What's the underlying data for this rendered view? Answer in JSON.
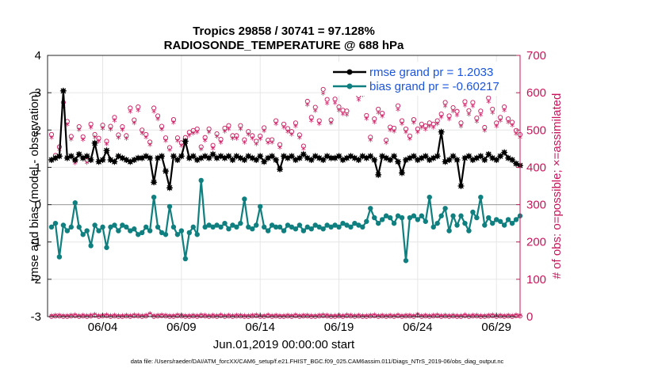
{
  "chart_data": {
    "type": "line",
    "title_line1": "Tropics 29858 / 30741 = 97.128%",
    "title_line2": "RADIOSONDE_TEMPERATURE @ 688 hPa",
    "xlabel": "Jun.01,2019 00:00:00 start",
    "ylabel_left": "rmse and bias (model - observation)",
    "ylabel_right": "# of obs: o=possible; ×=assimilated",
    "footnote": "data file: /Users/raeder/DAI/ATM_forcXX/CAM6_setup/f.e21.FHIST_BGC.f09_025.CAM6assim.011/Diags_NTrS_2019-06/obs_diag_output.nc",
    "xlim": [
      0.5,
      30.5
    ],
    "ylim_left": [
      -3,
      4
    ],
    "ylim_right": [
      0,
      700
    ],
    "x_ticks": [
      {
        "v": 4,
        "label": "06/04"
      },
      {
        "v": 9,
        "label": "06/09"
      },
      {
        "v": 14,
        "label": "06/14"
      },
      {
        "v": 19,
        "label": "06/19"
      },
      {
        "v": 24,
        "label": "06/24"
      },
      {
        "v": 29,
        "label": "06/29"
      }
    ],
    "y_ticks_left": [
      {
        "v": -3,
        "label": "-3"
      },
      {
        "v": -2,
        "label": "-2"
      },
      {
        "v": -1,
        "label": "-1"
      },
      {
        "v": 0,
        "label": "0"
      },
      {
        "v": 1,
        "label": "1"
      },
      {
        "v": 2,
        "label": "2"
      },
      {
        "v": 3,
        "label": "3"
      },
      {
        "v": 4,
        "label": "4"
      }
    ],
    "y_ticks_right": [
      {
        "v": 0,
        "label": "0"
      },
      {
        "v": 100,
        "label": "100"
      },
      {
        "v": 200,
        "label": "200"
      },
      {
        "v": 300,
        "label": "300"
      },
      {
        "v": 400,
        "label": "400"
      },
      {
        "v": 500,
        "label": "500"
      },
      {
        "v": 600,
        "label": "600"
      },
      {
        "v": 700,
        "label": "700"
      }
    ],
    "legend": [
      {
        "name": "rmse grand pr = 1.2033",
        "color": "#000000"
      },
      {
        "name": "bias grand pr = -0.60217",
        "color": "#0f7f7f"
      }
    ],
    "zero_line": 0,
    "x": [
      0.75,
      1.0,
      1.25,
      1.5,
      1.75,
      2.0,
      2.25,
      2.5,
      2.75,
      3.0,
      3.25,
      3.5,
      3.75,
      4.0,
      4.25,
      4.5,
      4.75,
      5.0,
      5.25,
      5.5,
      5.75,
      6.0,
      6.25,
      6.5,
      6.75,
      7.0,
      7.25,
      7.5,
      7.75,
      8.0,
      8.25,
      8.5,
      8.75,
      9.0,
      9.25,
      9.5,
      9.75,
      10.0,
      10.25,
      10.5,
      10.75,
      11.0,
      11.25,
      11.5,
      11.75,
      12.0,
      12.25,
      12.5,
      12.75,
      13.0,
      13.25,
      13.5,
      13.75,
      14.0,
      14.25,
      14.5,
      14.75,
      15.0,
      15.25,
      15.5,
      15.75,
      16.0,
      16.25,
      16.5,
      16.75,
      17.0,
      17.25,
      17.5,
      17.75,
      18.0,
      18.25,
      18.5,
      18.75,
      19.0,
      19.25,
      19.5,
      19.75,
      20.0,
      20.25,
      20.5,
      20.75,
      21.0,
      21.25,
      21.5,
      21.75,
      22.0,
      22.25,
      22.5,
      22.75,
      23.0,
      23.25,
      23.5,
      23.75,
      24.0,
      24.25,
      24.5,
      24.75,
      25.0,
      25.25,
      25.5,
      25.75,
      26.0,
      26.25,
      26.5,
      26.75,
      27.0,
      27.25,
      27.5,
      27.75,
      28.0,
      28.25,
      28.5,
      28.75,
      29.0,
      29.25,
      29.5,
      29.75,
      30.0,
      30.25,
      30.5
    ],
    "rmse": [
      1.2,
      1.25,
      1.3,
      3.05,
      1.25,
      1.3,
      1.2,
      1.35,
      1.25,
      1.3,
      1.2,
      1.65,
      1.15,
      1.2,
      1.45,
      1.2,
      1.15,
      1.3,
      1.25,
      1.2,
      1.15,
      1.2,
      1.25,
      1.25,
      1.3,
      1.25,
      0.6,
      1.25,
      1.3,
      0.9,
      0.45,
      1.3,
      1.2,
      1.3,
      1.7,
      1.25,
      1.3,
      1.2,
      1.25,
      1.3,
      1.25,
      1.35,
      1.25,
      1.3,
      1.25,
      1.3,
      1.2,
      1.3,
      1.25,
      1.2,
      1.3,
      1.25,
      1.2,
      1.3,
      1.15,
      1.25,
      1.3,
      1.2,
      0.95,
      1.3,
      1.25,
      1.3,
      1.2,
      1.25,
      1.35,
      1.25,
      1.2,
      1.3,
      1.25,
      1.2,
      1.3,
      1.25,
      1.25,
      1.3,
      1.2,
      1.25,
      1.3,
      1.25,
      1.2,
      1.3,
      1.25,
      1.3,
      1.2,
      0.8,
      1.3,
      1.25,
      1.2,
      1.3,
      1.15,
      0.85,
      1.2,
      1.25,
      1.3,
      1.2,
      1.25,
      1.3,
      1.2,
      1.25,
      1.3,
      1.95,
      1.15,
      1.2,
      1.3,
      1.2,
      0.5,
      1.25,
      1.3,
      1.2,
      1.25,
      1.3,
      1.2,
      1.35,
      1.25,
      1.2,
      1.3,
      1.4,
      1.25,
      1.2,
      1.1,
      1.05
    ],
    "bias": [
      -0.6,
      -0.5,
      -1.4,
      -0.55,
      -0.7,
      -0.6,
      0.05,
      -0.6,
      -0.8,
      -0.7,
      -1.1,
      -0.55,
      -0.7,
      -0.6,
      -1.15,
      -0.6,
      -0.55,
      -0.7,
      -0.55,
      -0.6,
      -0.7,
      -0.65,
      -0.8,
      -0.75,
      -0.6,
      -0.7,
      0.2,
      -0.6,
      -0.75,
      -0.8,
      -0.05,
      -0.6,
      -0.8,
      -0.7,
      -1.45,
      -0.75,
      -0.6,
      -0.8,
      0.65,
      -0.6,
      -0.55,
      -0.6,
      -0.55,
      -0.6,
      -0.5,
      -0.65,
      -0.55,
      -0.6,
      -0.5,
      0.15,
      -0.6,
      -0.65,
      -0.55,
      -0.05,
      -0.6,
      -0.7,
      -0.55,
      -0.6,
      -0.6,
      -0.7,
      -0.55,
      -0.6,
      -0.65,
      -0.55,
      -0.7,
      -0.6,
      -0.65,
      -0.55,
      -0.6,
      -0.65,
      -0.55,
      -0.6,
      -0.55,
      -0.6,
      -0.5,
      -0.55,
      -0.6,
      -0.5,
      -0.55,
      -0.6,
      -0.45,
      -0.1,
      -0.35,
      -0.5,
      -0.4,
      -0.3,
      -0.35,
      -0.5,
      -0.3,
      -0.35,
      -1.5,
      -0.35,
      -0.3,
      -0.4,
      -0.3,
      -0.45,
      0.2,
      -0.6,
      -0.5,
      -0.3,
      -0.1,
      -0.7,
      -0.3,
      -0.55,
      -0.3,
      -0.5,
      -0.7,
      -0.2,
      -0.35,
      0.2,
      -0.55,
      -0.35,
      -0.5,
      -0.4,
      -0.45,
      -0.55,
      -0.4,
      -0.5,
      -0.4,
      -0.3
    ],
    "obs_possible": [
      488,
      432,
      455,
      574,
      523,
      483,
      418,
      509,
      482,
      419,
      516,
      488,
      478,
      513,
      470,
      510,
      534,
      487,
      509,
      485,
      559,
      527,
      562,
      500,
      488,
      468,
      559,
      538,
      510,
      479,
      453,
      528,
      479,
      466,
      480,
      494,
      499,
      503,
      455,
      480,
      503,
      459,
      490,
      475,
      505,
      512,
      485,
      485,
      512,
      474,
      496,
      485,
      470,
      484,
      506,
      473,
      474,
      525,
      461,
      516,
      504,
      496,
      519,
      487,
      457,
      577,
      534,
      561,
      525,
      609,
      582,
      527,
      583,
      562,
      553,
      551,
      626,
      612,
      592,
      605,
      539,
      481,
      530,
      556,
      545,
      473,
      508,
      505,
      565,
      525,
      503,
      484,
      528,
      503,
      516,
      511,
      519,
      516,
      525,
      543,
      574,
      538,
      560,
      550,
      519,
      576,
      552,
      574,
      532,
      551,
      507,
      586,
      556,
      519,
      534,
      562,
      530,
      521,
      499,
      488
    ],
    "obs_assimilated": [
      476,
      422,
      444,
      560,
      511,
      472,
      408,
      497,
      471,
      409,
      504,
      477,
      467,
      501,
      459,
      498,
      522,
      476,
      497,
      474,
      546,
      515,
      549,
      488,
      477,
      457,
      546,
      526,
      498,
      468,
      443,
      516,
      468,
      455,
      469,
      483,
      488,
      491,
      445,
      469,
      491,
      448,
      479,
      464,
      493,
      500,
      474,
      474,
      500,
      463,
      485,
      474,
      459,
      473,
      494,
      462,
      463,
      513,
      450,
      504,
      492,
      485,
      507,
      476,
      446,
      564,
      522,
      548,
      513,
      595,
      569,
      515,
      570,
      549,
      540,
      538,
      612,
      598,
      578,
      591,
      527,
      470,
      518,
      543,
      533,
      462,
      496,
      493,
      552,
      513,
      491,
      473,
      516,
      491,
      504,
      499,
      507,
      504,
      513,
      531,
      561,
      526,
      547,
      537,
      507,
      563,
      539,
      561,
      520,
      538,
      495,
      573,
      543,
      507,
      522,
      549,
      518,
      509,
      487,
      477
    ],
    "obs_small": [
      0,
      1,
      1,
      0,
      0,
      1,
      2,
      0,
      1,
      0,
      1,
      3,
      0,
      1,
      2,
      0,
      1,
      0,
      0,
      1,
      0,
      2,
      1,
      0,
      1,
      5,
      0,
      1,
      2,
      1,
      0,
      0,
      2,
      1,
      0,
      0,
      1,
      0,
      2,
      1,
      0,
      1,
      0,
      2,
      0,
      1,
      0,
      1,
      1,
      0,
      0,
      1,
      2,
      0,
      0,
      2,
      0,
      1,
      0,
      0,
      1,
      0,
      2,
      0,
      1,
      1,
      0,
      0,
      1,
      2,
      1,
      0,
      0,
      1,
      0,
      2,
      1,
      0,
      1,
      0,
      0,
      1,
      2,
      0,
      1,
      0,
      1,
      0,
      2,
      0,
      1,
      1,
      0,
      3,
      0,
      1,
      0,
      1,
      2,
      0,
      1,
      0,
      1,
      0,
      0,
      2,
      0,
      1,
      1,
      0,
      0,
      1,
      2,
      0,
      1,
      0,
      1,
      0,
      2,
      1
    ]
  }
}
